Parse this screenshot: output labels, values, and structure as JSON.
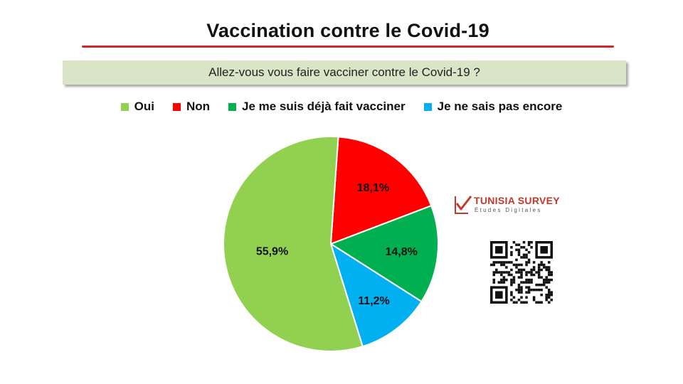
{
  "title": "Vaccination contre le Covid-19",
  "question": "Allez-vous vous faire vacciner contre le Covid-19  ?",
  "brand": {
    "name": "TUNISIA SURVEY",
    "tagline": "Études Digitales"
  },
  "colors": {
    "title_rule": "#d4242c",
    "question_bg": "#d9e5c6"
  },
  "chart_data": {
    "type": "pie",
    "legend_position": "top",
    "slices": [
      {
        "label": "Oui",
        "value": 55.9,
        "display": "55,9%",
        "color": "#92d050"
      },
      {
        "label": "Non",
        "value": 18.1,
        "display": "18,1%",
        "color": "#ff0000"
      },
      {
        "label": "Je me suis déjà fait vacciner",
        "value": 14.8,
        "display": "14,8%",
        "color": "#00b050"
      },
      {
        "label": "Je ne sais pas encore",
        "value": 11.2,
        "display": "11,2%",
        "color": "#00b0f0"
      }
    ]
  }
}
